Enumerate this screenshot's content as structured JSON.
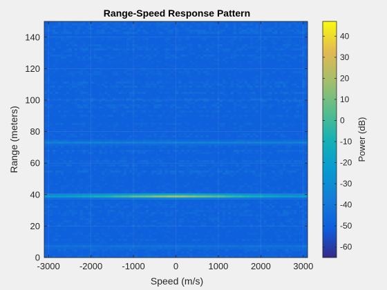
{
  "figure": {
    "background": "#f0f0f0"
  },
  "chart_data": {
    "type": "heatmap",
    "title": "Range-Speed Response Pattern",
    "xlabel": "Speed (m/s)",
    "ylabel": "Range (meters)",
    "xlim": [
      -3100,
      3100
    ],
    "ylim": [
      0,
      150
    ],
    "xticks": [
      -3000,
      -2000,
      -1000,
      0,
      1000,
      2000,
      3000
    ],
    "yticks": [
      0,
      20,
      40,
      60,
      80,
      100,
      120,
      140
    ],
    "colorbar": {
      "label": "Power (dB)",
      "clim": [
        -65,
        47
      ],
      "ticks": [
        -60,
        -50,
        -40,
        -30,
        -20,
        -10,
        0,
        10,
        20,
        30,
        40
      ],
      "colormap": "parula"
    },
    "background_level_db": -50,
    "features": [
      {
        "range": 39,
        "peak_speed": 0,
        "peak_db": 22,
        "floor_db": -22,
        "description": "strong return band across all speeds, peak at 0 m/s"
      },
      {
        "range": 73,
        "floor_db": -36,
        "description": "secondary horizontal band"
      },
      {
        "range": 7,
        "floor_db": -42,
        "description": "faint low-range band"
      }
    ],
    "grid": true
  }
}
